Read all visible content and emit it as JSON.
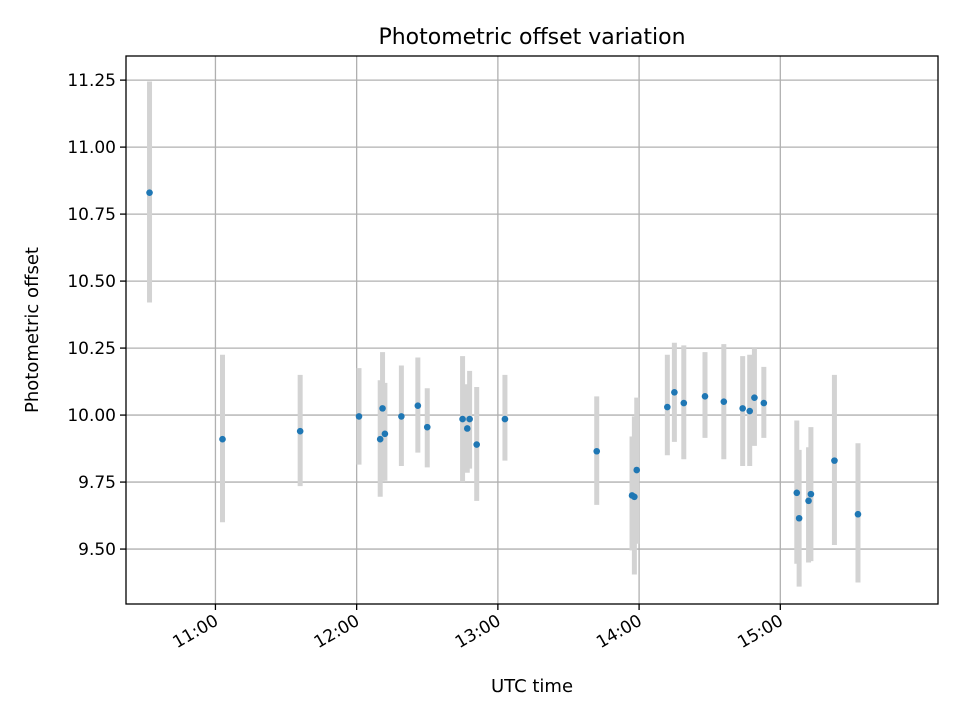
{
  "chart_data": {
    "type": "scatter",
    "title": "Photometric offset variation",
    "xlabel": "UTC time",
    "ylabel": "Photometric offset",
    "x_unit": "UTC time (HH:MM)",
    "xlim": [
      "10:22",
      "16:07"
    ],
    "ylim": [
      9.295,
      11.34
    ],
    "x_ticks": [
      "11:00",
      "12:00",
      "13:00",
      "14:00",
      "15:00"
    ],
    "y_ticks": [
      9.5,
      9.75,
      10.0,
      10.25,
      10.5,
      10.75,
      11.0,
      11.25
    ],
    "y_tick_labels": [
      "9.50",
      "9.75",
      "10.00",
      "10.25",
      "10.50",
      "10.75",
      "11.00",
      "11.25"
    ],
    "grid": true,
    "colors": {
      "point": "#1f77b4",
      "errorbar": "#d3d3d3",
      "grid": "#b0b0b0"
    },
    "series": [
      {
        "x": [
          "10:32",
          "11:03",
          "11:36",
          "12:01",
          "12:10",
          "12:11",
          "12:12",
          "12:19",
          "12:26",
          "12:30",
          "12:45",
          "12:47",
          "12:48",
          "12:51",
          "13:03",
          "13:42",
          "13:57",
          "13:58",
          "13:59",
          "14:12",
          "14:15",
          "14:19",
          "14:28",
          "14:36",
          "14:44",
          "14:47",
          "14:49",
          "14:53",
          "15:07",
          "15:08",
          "15:12",
          "15:13",
          "15:23",
          "15:33"
        ],
        "y": [
          10.83,
          9.91,
          9.94,
          9.995,
          9.91,
          10.025,
          9.93,
          9.995,
          10.035,
          9.955,
          9.985,
          9.95,
          9.985,
          9.89,
          9.985,
          9.865,
          9.7,
          9.695,
          9.795,
          10.03,
          10.085,
          10.045,
          10.07,
          10.05,
          10.025,
          10.015,
          10.065,
          10.045,
          9.71,
          9.615,
          9.68,
          9.705,
          9.83,
          9.63
        ],
        "err_low": [
          10.42,
          9.6,
          9.735,
          9.815,
          9.695,
          9.755,
          9.755,
          9.81,
          9.86,
          9.805,
          9.75,
          9.785,
          9.8,
          9.68,
          9.83,
          9.665,
          9.495,
          9.405,
          9.52,
          9.85,
          9.9,
          9.835,
          9.915,
          9.835,
          9.81,
          9.81,
          9.885,
          9.915,
          9.445,
          9.36,
          9.45,
          9.455,
          9.515,
          9.375
        ],
        "err_high": [
          11.245,
          10.225,
          10.15,
          10.175,
          10.13,
          10.235,
          10.12,
          10.185,
          10.215,
          10.1,
          10.22,
          10.115,
          10.165,
          10.105,
          10.15,
          10.07,
          9.92,
          9.995,
          10.065,
          10.225,
          10.27,
          10.26,
          10.235,
          10.265,
          10.22,
          10.225,
          10.25,
          10.18,
          9.98,
          9.87,
          9.88,
          9.955,
          10.15,
          9.895
        ]
      }
    ]
  }
}
